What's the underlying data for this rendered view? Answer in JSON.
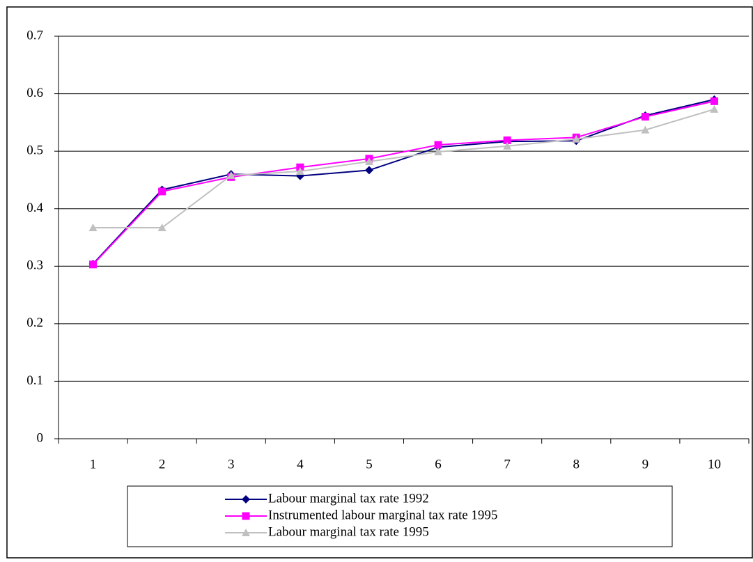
{
  "chart_data": {
    "type": "line",
    "categories": [
      "1",
      "2",
      "3",
      "4",
      "5",
      "6",
      "7",
      "8",
      "9",
      "10"
    ],
    "series": [
      {
        "name": "Labour marginal tax rate 1992",
        "color": "#000080",
        "marker": "diamond",
        "values": [
          0.304,
          0.433,
          0.46,
          0.457,
          0.467,
          0.507,
          0.517,
          0.518,
          0.562,
          0.59
        ]
      },
      {
        "name": "Instrumented labour marginal tax rate 1995",
        "color": "#ff00ff",
        "marker": "square",
        "values": [
          0.303,
          0.43,
          0.455,
          0.472,
          0.487,
          0.511,
          0.519,
          0.524,
          0.56,
          0.587
        ]
      },
      {
        "name": "Labour marginal tax rate 1995",
        "color": "#c0c0c0",
        "marker": "triangle",
        "values": [
          0.367,
          0.367,
          0.458,
          0.465,
          0.482,
          0.499,
          0.509,
          0.521,
          0.537,
          0.573
        ]
      }
    ],
    "ylim": [
      0,
      0.7
    ],
    "yticks": [
      0,
      0.1,
      0.2,
      0.3,
      0.4,
      0.5,
      0.6,
      0.7
    ],
    "grid": true,
    "legend": "bottom"
  }
}
